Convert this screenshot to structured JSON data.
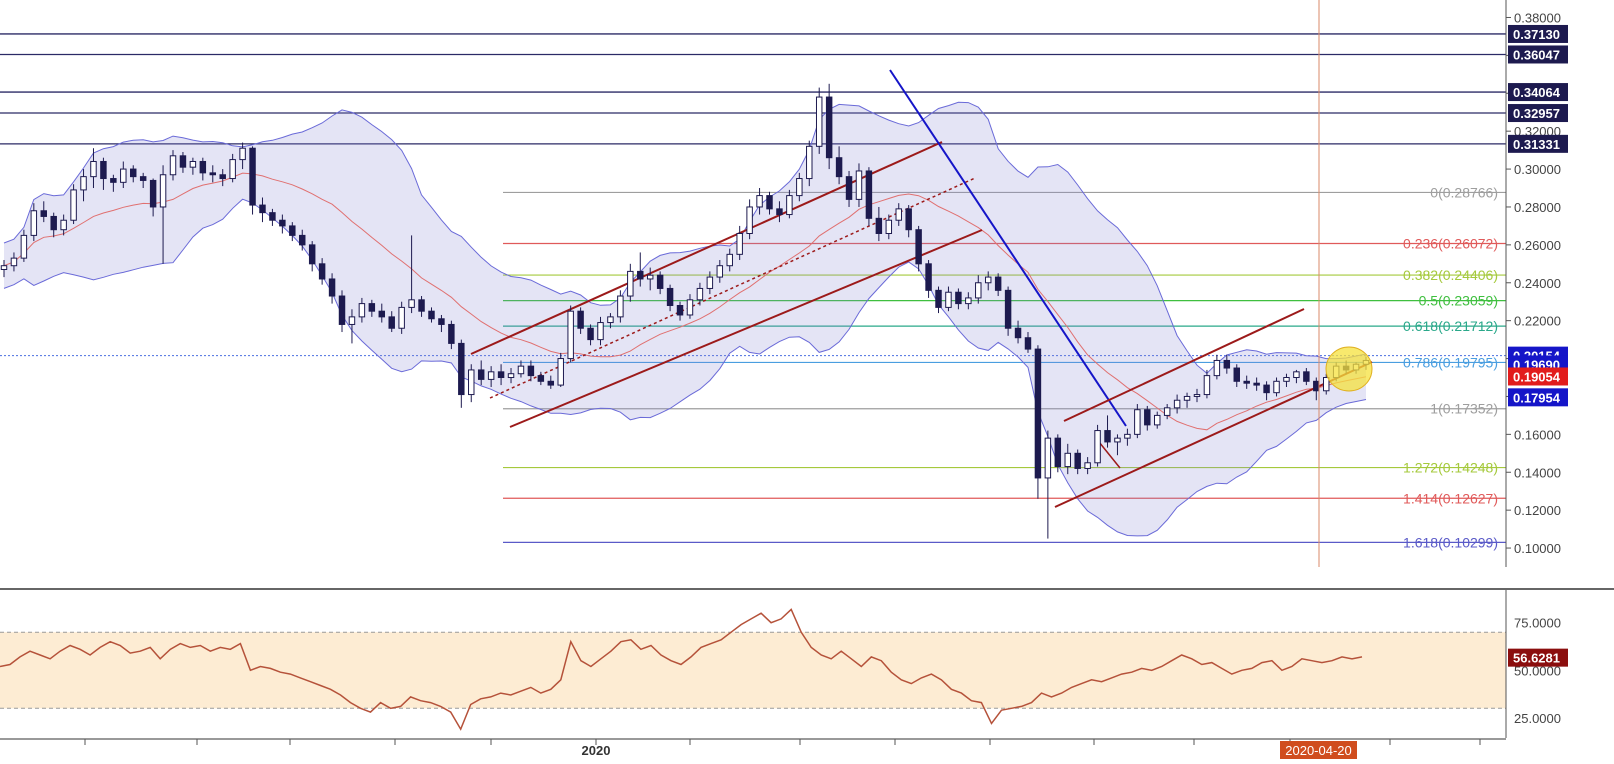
{
  "chart_data": {
    "type": "candlestick",
    "price_pane": {
      "ylim": [
        0.09,
        0.385
      ],
      "tick_labels": [
        "0.38000",
        "0.36000",
        "0.34000",
        "0.32000",
        "0.30000",
        "0.28000",
        "0.26000",
        "0.24000",
        "0.22000",
        "0.20000",
        "0.18000",
        "0.16000",
        "0.14000",
        "0.12000",
        "0.10000"
      ],
      "tick_values": [
        0.38,
        0.36,
        0.34,
        0.32,
        0.3,
        0.28,
        0.26,
        0.24,
        0.22,
        0.2,
        0.18,
        0.16,
        0.14,
        0.12,
        0.1
      ],
      "price_tags": [
        {
          "label": "0.37130",
          "value": 0.3713,
          "color": "#1d1a4f"
        },
        {
          "label": "0.36047",
          "value": 0.36047,
          "color": "#1d1a4f"
        },
        {
          "label": "0.34064",
          "value": 0.34064,
          "color": "#1d1a4f"
        },
        {
          "label": "0.32957",
          "value": 0.32957,
          "color": "#1d1a4f"
        },
        {
          "label": "0.31331",
          "value": 0.31331,
          "color": "#1d1a4f"
        },
        {
          "label": "0.20154",
          "value": 0.20154,
          "color": "#1515c8"
        },
        {
          "label": "0.19690",
          "value": 0.1969,
          "color": "#1515c8"
        },
        {
          "label": "0.19054",
          "value": 0.19054,
          "color": "#e21c1c"
        },
        {
          "label": "0.17954",
          "value": 0.17954,
          "color": "#1515c8"
        }
      ],
      "horizontal_levels": [
        0.3713,
        0.36047,
        0.34064,
        0.32957,
        0.31331
      ],
      "fibonacci": [
        {
          "label": "0(0.28766)",
          "value": 0.28766,
          "color": "#9e9e9e"
        },
        {
          "label": "0.236(0.26072)",
          "value": 0.26072,
          "color": "#e05a5a"
        },
        {
          "label": "0.382(0.24406)",
          "value": 0.24406,
          "color": "#a5c93c"
        },
        {
          "label": "0.5(0.23059)",
          "value": 0.23059,
          "color": "#3fbf3f"
        },
        {
          "label": "0.618(0.21712)",
          "value": 0.21712,
          "color": "#2aa88a"
        },
        {
          "label": "0.786(0.19795)",
          "value": 0.19795,
          "color": "#4a9ee0"
        },
        {
          "label": "1(0.17352)",
          "value": 0.17352,
          "color": "#9e9e9e"
        },
        {
          "label": "1.272(0.14248)",
          "value": 0.14248,
          "color": "#a5c93c"
        },
        {
          "label": "1.414(0.12627)",
          "value": 0.12627,
          "color": "#e05a5a"
        },
        {
          "label": "1.618(0.10299)",
          "value": 0.10299,
          "color": "#5a5ac8"
        }
      ],
      "ohlc": [
        [
          0.247,
          0.252,
          0.243,
          0.249
        ],
        [
          0.249,
          0.256,
          0.246,
          0.253
        ],
        [
          0.253,
          0.268,
          0.251,
          0.265
        ],
        [
          0.265,
          0.282,
          0.262,
          0.278
        ],
        [
          0.278,
          0.283,
          0.272,
          0.275
        ],
        [
          0.275,
          0.277,
          0.264,
          0.268
        ],
        [
          0.268,
          0.276,
          0.265,
          0.273
        ],
        [
          0.273,
          0.292,
          0.271,
          0.289
        ],
        [
          0.289,
          0.3,
          0.283,
          0.296
        ],
        [
          0.296,
          0.311,
          0.29,
          0.304
        ],
        [
          0.304,
          0.306,
          0.289,
          0.295
        ],
        [
          0.295,
          0.297,
          0.288,
          0.293
        ],
        [
          0.293,
          0.304,
          0.29,
          0.3
        ],
        [
          0.3,
          0.302,
          0.293,
          0.296
        ],
        [
          0.296,
          0.298,
          0.29,
          0.294
        ],
        [
          0.294,
          0.295,
          0.275,
          0.28
        ],
        [
          0.28,
          0.302,
          0.25,
          0.297
        ],
        [
          0.297,
          0.31,
          0.294,
          0.307
        ],
        [
          0.307,
          0.309,
          0.298,
          0.301
        ],
        [
          0.301,
          0.306,
          0.297,
          0.304
        ],
        [
          0.304,
          0.306,
          0.294,
          0.298
        ],
        [
          0.298,
          0.302,
          0.293,
          0.297
        ],
        [
          0.297,
          0.3,
          0.291,
          0.295
        ],
        [
          0.295,
          0.308,
          0.293,
          0.305
        ],
        [
          0.305,
          0.314,
          0.3,
          0.311
        ],
        [
          0.311,
          0.312,
          0.276,
          0.281
        ],
        [
          0.281,
          0.285,
          0.272,
          0.277
        ],
        [
          0.277,
          0.279,
          0.27,
          0.273
        ],
        [
          0.273,
          0.276,
          0.266,
          0.27
        ],
        [
          0.27,
          0.272,
          0.262,
          0.265
        ],
        [
          0.265,
          0.268,
          0.257,
          0.26
        ],
        [
          0.26,
          0.262,
          0.246,
          0.25
        ],
        [
          0.25,
          0.253,
          0.239,
          0.242
        ],
        [
          0.242,
          0.245,
          0.229,
          0.233
        ],
        [
          0.233,
          0.236,
          0.214,
          0.218
        ],
        [
          0.218,
          0.226,
          0.208,
          0.222
        ],
        [
          0.222,
          0.232,
          0.219,
          0.229
        ],
        [
          0.229,
          0.231,
          0.222,
          0.225
        ],
        [
          0.225,
          0.229,
          0.219,
          0.222
        ],
        [
          0.222,
          0.225,
          0.214,
          0.216
        ],
        [
          0.216,
          0.23,
          0.213,
          0.227
        ],
        [
          0.227,
          0.265,
          0.224,
          0.231
        ],
        [
          0.231,
          0.233,
          0.222,
          0.225
        ],
        [
          0.225,
          0.227,
          0.219,
          0.221
        ],
        [
          0.221,
          0.223,
          0.214,
          0.218
        ],
        [
          0.218,
          0.22,
          0.205,
          0.208
        ],
        [
          0.208,
          0.21,
          0.174,
          0.181
        ],
        [
          0.181,
          0.197,
          0.177,
          0.194
        ],
        [
          0.194,
          0.199,
          0.186,
          0.189
        ],
        [
          0.189,
          0.196,
          0.185,
          0.193
        ],
        [
          0.193,
          0.197,
          0.186,
          0.19
        ],
        [
          0.19,
          0.195,
          0.187,
          0.192
        ],
        [
          0.192,
          0.199,
          0.19,
          0.196
        ],
        [
          0.196,
          0.199,
          0.188,
          0.191
        ],
        [
          0.191,
          0.193,
          0.186,
          0.188
        ],
        [
          0.188,
          0.191,
          0.184,
          0.186
        ],
        [
          0.186,
          0.203,
          0.185,
          0.2
        ],
        [
          0.2,
          0.228,
          0.198,
          0.225
        ],
        [
          0.225,
          0.227,
          0.213,
          0.216
        ],
        [
          0.216,
          0.218,
          0.207,
          0.21
        ],
        [
          0.21,
          0.222,
          0.207,
          0.219
        ],
        [
          0.219,
          0.224,
          0.216,
          0.222
        ],
        [
          0.222,
          0.236,
          0.219,
          0.233
        ],
        [
          0.233,
          0.25,
          0.23,
          0.246
        ],
        [
          0.246,
          0.256,
          0.238,
          0.242
        ],
        [
          0.242,
          0.248,
          0.236,
          0.244
        ],
        [
          0.244,
          0.246,
          0.234,
          0.237
        ],
        [
          0.237,
          0.239,
          0.225,
          0.228
        ],
        [
          0.228,
          0.23,
          0.22,
          0.223
        ],
        [
          0.223,
          0.234,
          0.221,
          0.231
        ],
        [
          0.231,
          0.24,
          0.228,
          0.237
        ],
        [
          0.237,
          0.246,
          0.234,
          0.243
        ],
        [
          0.243,
          0.252,
          0.24,
          0.249
        ],
        [
          0.249,
          0.258,
          0.246,
          0.255
        ],
        [
          0.255,
          0.27,
          0.252,
          0.266
        ],
        [
          0.266,
          0.284,
          0.263,
          0.28
        ],
        [
          0.28,
          0.29,
          0.276,
          0.286
        ],
        [
          0.286,
          0.288,
          0.276,
          0.279
        ],
        [
          0.279,
          0.283,
          0.272,
          0.276
        ],
        [
          0.276,
          0.289,
          0.274,
          0.286
        ],
        [
          0.286,
          0.298,
          0.283,
          0.295
        ],
        [
          0.295,
          0.315,
          0.291,
          0.312
        ],
        [
          0.312,
          0.343,
          0.308,
          0.338
        ],
        [
          0.338,
          0.345,
          0.3,
          0.306
        ],
        [
          0.306,
          0.312,
          0.292,
          0.296
        ],
        [
          0.296,
          0.299,
          0.28,
          0.284
        ],
        [
          0.284,
          0.303,
          0.28,
          0.299
        ],
        [
          0.299,
          0.301,
          0.27,
          0.274
        ],
        [
          0.274,
          0.28,
          0.262,
          0.266
        ],
        [
          0.266,
          0.276,
          0.263,
          0.273
        ],
        [
          0.273,
          0.282,
          0.27,
          0.279
        ],
        [
          0.279,
          0.281,
          0.264,
          0.268
        ],
        [
          0.268,
          0.27,
          0.246,
          0.25
        ],
        [
          0.25,
          0.252,
          0.232,
          0.236
        ],
        [
          0.236,
          0.238,
          0.224,
          0.227
        ],
        [
          0.227,
          0.238,
          0.225,
          0.235
        ],
        [
          0.235,
          0.237,
          0.226,
          0.229
        ],
        [
          0.229,
          0.235,
          0.226,
          0.232
        ],
        [
          0.232,
          0.244,
          0.229,
          0.24
        ],
        [
          0.24,
          0.246,
          0.236,
          0.243
        ],
        [
          0.243,
          0.245,
          0.233,
          0.236
        ],
        [
          0.236,
          0.238,
          0.212,
          0.216
        ],
        [
          0.216,
          0.22,
          0.208,
          0.211
        ],
        [
          0.211,
          0.214,
          0.203,
          0.205
        ],
        [
          0.205,
          0.207,
          0.126,
          0.137
        ],
        [
          0.137,
          0.162,
          0.105,
          0.158
        ],
        [
          0.158,
          0.16,
          0.14,
          0.143
        ],
        [
          0.143,
          0.155,
          0.139,
          0.15
        ],
        [
          0.15,
          0.152,
          0.139,
          0.142
        ],
        [
          0.142,
          0.148,
          0.139,
          0.145
        ],
        [
          0.145,
          0.165,
          0.143,
          0.162
        ],
        [
          0.162,
          0.17,
          0.153,
          0.156
        ],
        [
          0.156,
          0.16,
          0.149,
          0.158
        ],
        [
          0.158,
          0.163,
          0.154,
          0.16
        ],
        [
          0.16,
          0.176,
          0.158,
          0.173
        ],
        [
          0.173,
          0.175,
          0.162,
          0.165
        ],
        [
          0.165,
          0.172,
          0.163,
          0.17
        ],
        [
          0.17,
          0.176,
          0.168,
          0.174
        ],
        [
          0.174,
          0.181,
          0.171,
          0.178
        ],
        [
          0.178,
          0.182,
          0.174,
          0.18
        ],
        [
          0.18,
          0.184,
          0.177,
          0.181
        ],
        [
          0.181,
          0.194,
          0.179,
          0.191
        ],
        [
          0.191,
          0.202,
          0.189,
          0.199
        ],
        [
          0.199,
          0.202,
          0.192,
          0.195
        ],
        [
          0.195,
          0.197,
          0.185,
          0.188
        ],
        [
          0.188,
          0.191,
          0.184,
          0.187
        ],
        [
          0.187,
          0.19,
          0.183,
          0.186
        ],
        [
          0.186,
          0.188,
          0.178,
          0.182
        ],
        [
          0.182,
          0.19,
          0.18,
          0.188
        ],
        [
          0.188,
          0.192,
          0.185,
          0.19
        ],
        [
          0.19,
          0.194,
          0.187,
          0.193
        ],
        [
          0.193,
          0.195,
          0.186,
          0.188
        ],
        [
          0.188,
          0.19,
          0.178,
          0.183
        ],
        [
          0.183,
          0.192,
          0.181,
          0.19
        ],
        [
          0.19,
          0.198,
          0.188,
          0.196
        ],
        [
          0.196,
          0.199,
          0.192,
          0.194
        ],
        [
          0.194,
          0.198,
          0.192,
          0.197
        ],
        [
          0.197,
          0.201,
          0.194,
          0.199
        ]
      ],
      "x_axis": {
        "labels": [
          "2020",
          "2020-04-20"
        ],
        "highlight": "2020-04-20"
      }
    },
    "rsi_pane": {
      "ylim": [
        17,
        88
      ],
      "tick_labels": [
        "75.0000",
        "50.0000",
        "25.0000"
      ],
      "tick_values": [
        75,
        50,
        25
      ],
      "band": [
        30,
        70
      ],
      "current": {
        "label": "56.6281",
        "value": 56.6281,
        "color": "#8b0e0e"
      },
      "series": [
        52,
        53,
        57,
        60,
        58,
        56,
        60,
        63,
        61,
        58,
        62,
        65,
        63,
        59,
        60,
        62,
        56,
        61,
        64,
        62,
        63,
        60,
        62,
        61,
        64,
        50,
        52,
        51,
        49,
        48,
        46,
        44,
        42,
        40,
        37,
        33,
        30,
        28,
        33,
        30,
        31,
        36,
        34,
        33,
        31,
        28,
        19,
        32,
        35,
        36,
        38,
        37,
        39,
        41,
        38,
        40,
        45,
        65,
        55,
        52,
        56,
        60,
        65,
        66,
        61,
        63,
        58,
        55,
        53,
        57,
        62,
        64,
        66,
        70,
        74,
        77,
        80,
        75,
        77,
        82,
        70,
        62,
        58,
        56,
        60,
        56,
        52,
        57,
        55,
        49,
        45,
        43,
        46,
        48,
        45,
        40,
        38,
        34,
        33,
        22,
        29,
        30,
        31,
        33,
        38,
        36,
        38,
        41,
        43,
        45,
        44,
        46,
        48,
        49,
        51,
        50,
        52,
        55,
        58,
        56,
        53,
        54,
        51,
        48,
        50,
        51,
        54,
        55,
        50,
        52,
        56,
        55,
        54,
        55,
        57,
        56,
        57
      ]
    }
  }
}
